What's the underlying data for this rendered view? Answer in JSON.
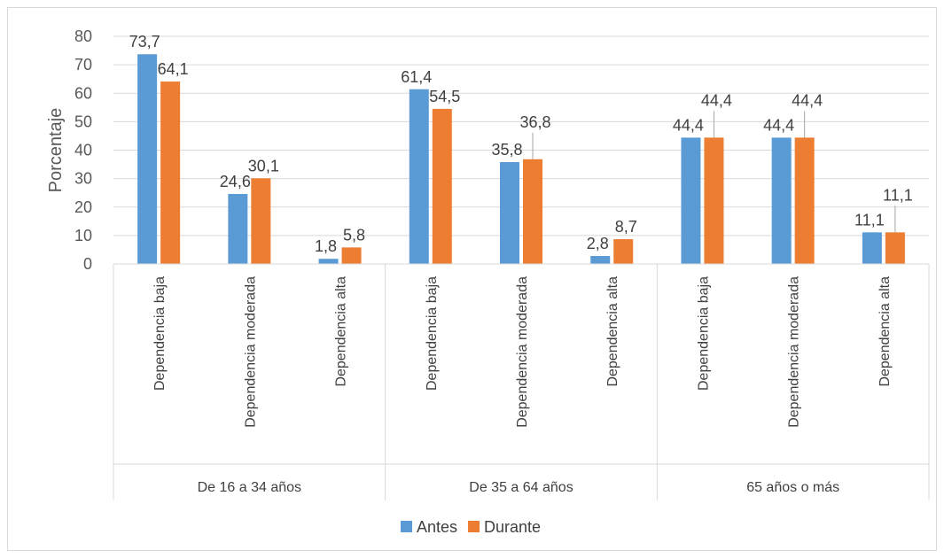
{
  "chart_data": {
    "type": "bar",
    "ylabel": "Porcentaje",
    "xlabel": "",
    "ylim": [
      0,
      80
    ],
    "yticks": [
      "0",
      "10",
      "20",
      "30",
      "40",
      "50",
      "60",
      "70",
      "80"
    ],
    "grid": true,
    "legend_position": "bottom",
    "groups": [
      {
        "label": "De 16 a 34 años",
        "categories": [
          "Dependencia baja",
          "Dependencia moderada",
          "Dependencia alta"
        ]
      },
      {
        "label": "De 35 a 64 años",
        "categories": [
          "Dependencia baja",
          "Dependencia moderada",
          "Dependencia alta"
        ]
      },
      {
        "label": "65 años o más",
        "categories": [
          "Dependencia baja",
          "Dependencia moderada",
          "Dependencia alta"
        ]
      }
    ],
    "series": [
      {
        "name": "Antes",
        "color": "#5b9bd5",
        "values": [
          73.7,
          24.6,
          1.8,
          61.4,
          35.8,
          2.8,
          44.4,
          44.4,
          11.1
        ],
        "labels": [
          "73,7",
          "24,6",
          "1,8",
          "61,4",
          "35,8",
          "2,8",
          "44,4",
          "44,4",
          "11,1"
        ]
      },
      {
        "name": "Durante",
        "color": "#ed7d31",
        "values": [
          64.1,
          30.1,
          5.8,
          54.5,
          36.8,
          8.7,
          44.4,
          44.4,
          11.1
        ],
        "labels": [
          "64,1",
          "30,1",
          "5,8",
          "54,5",
          "36,8",
          "8,7",
          "44,4",
          "44,4",
          "11,1"
        ]
      }
    ]
  }
}
